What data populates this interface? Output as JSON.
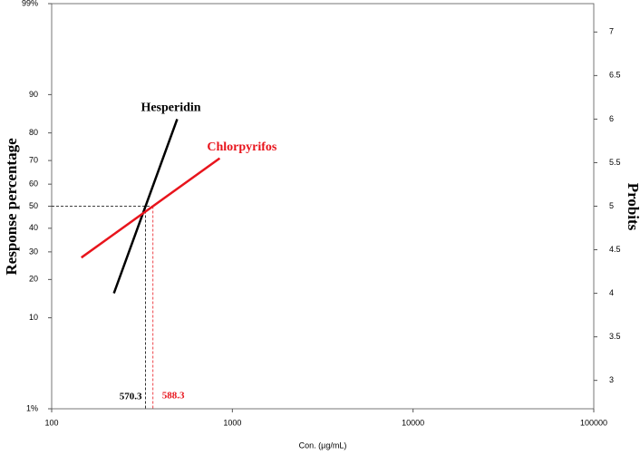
{
  "chart_data": {
    "type": "line",
    "x_label": "Con. (µg/mL)",
    "y_label": "Response percentage",
    "y2_label": "Probits",
    "xscale": "log",
    "xlim": [
      100,
      100000
    ],
    "xticks": [
      100,
      1000,
      10000,
      100000
    ],
    "yscale": "probit",
    "ylim": [
      1,
      99
    ],
    "yticks": [
      {
        "value": 1,
        "label": "1%"
      },
      10,
      20,
      30,
      40,
      50,
      60,
      70,
      80,
      90,
      {
        "value": 99,
        "label": "99%"
      }
    ],
    "y2lim": [
      2.674,
      7.326
    ],
    "y2ticks": [
      3,
      3.5,
      4,
      4.5,
      5,
      5.5,
      6,
      6.5,
      7
    ],
    "series": [
      {
        "name": "Hesperidin",
        "color": "#000000",
        "axis": "y2",
        "x": [
          221,
          495
        ],
        "values": [
          4.0,
          6.0
        ]
      },
      {
        "name": "Chlorpyrifos",
        "color": "#e8141c",
        "axis": "y2",
        "x": [
          146,
          851
        ],
        "values": [
          4.41,
          5.55
        ]
      }
    ],
    "annotations": [
      {
        "text": "570.3",
        "color": "#000000"
      },
      {
        "text": "588.3",
        "color": "#e8141c"
      }
    ]
  }
}
